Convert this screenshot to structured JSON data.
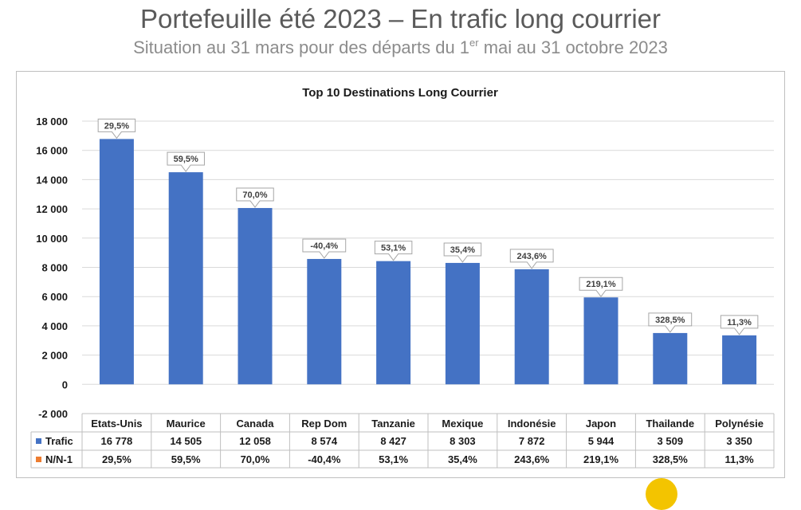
{
  "page": {
    "title": "Portefeuille été 2023 – En trafic long courrier",
    "subtitle_before_sup": "Situation au 31 mars pour des départs du 1",
    "subtitle_sup": "er",
    "subtitle_after_sup": " mai au 31 octobre 2023"
  },
  "chart_data": {
    "type": "bar",
    "title": "Top 10 Destinations Long Courrier",
    "categories": [
      "Etats-Unis",
      "Maurice",
      "Canada",
      "Rep Dom",
      "Tanzanie",
      "Mexique",
      "Indonésie",
      "Japon",
      "Thailande",
      "Polynésie"
    ],
    "series": [
      {
        "name": "Trafic",
        "values": [
          16778,
          14505,
          12058,
          8574,
          8427,
          8303,
          7872,
          5944,
          3509,
          3350
        ],
        "value_labels": [
          "16 778",
          "14 505",
          "12 058",
          "8 574",
          "8 427",
          "8 303",
          "7 872",
          "5 944",
          "3 509",
          "3 350"
        ],
        "color": "#4472c4"
      },
      {
        "name": "N/N-1",
        "value_labels": [
          "29,5%",
          "59,5%",
          "70,0%",
          "-40,4%",
          "53,1%",
          "35,4%",
          "243,6%",
          "219,1%",
          "328,5%",
          "11,3%"
        ],
        "color": "#ed7d31"
      }
    ],
    "ylim": [
      -2000,
      18000
    ],
    "yticks": [
      -2000,
      0,
      2000,
      4000,
      6000,
      8000,
      10000,
      12000,
      14000,
      16000,
      18000
    ],
    "ytick_labels": [
      "-2 000",
      "0",
      "2 000",
      "4 000",
      "6 000",
      "8 000",
      "10 000",
      "12 000",
      "14 000",
      "16 000",
      "18 000"
    ],
    "grid": true,
    "legend": "data-table"
  }
}
